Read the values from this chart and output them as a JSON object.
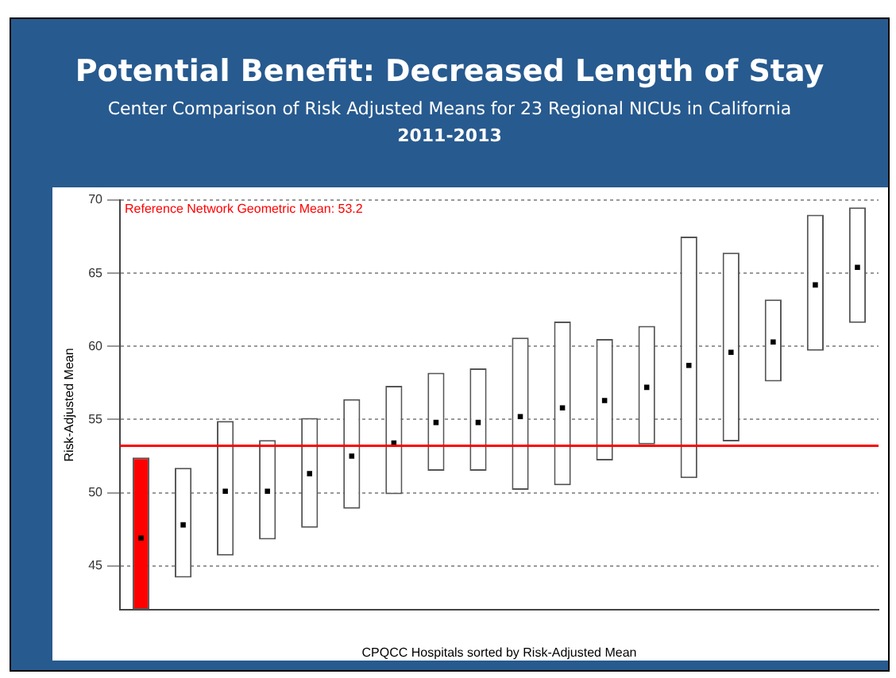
{
  "chart_data": {
    "type": "bar",
    "title": "Potential Benefit: Decreased Length of Stay",
    "subtitle": "Center Comparison of Risk Adjusted Means for 23 Regional NICUs in California\n2011-2013",
    "xlabel": "CPQCC Hospitals sorted by Risk-Adjusted Mean",
    "ylabel": "Risk-Adjusted Mean",
    "categories": [
      null,
      null,
      null,
      null,
      null,
      null,
      null,
      null,
      null,
      null,
      null,
      null,
      null,
      null,
      null,
      null,
      null,
      null
    ],
    "series": [
      {
        "base": [
          42,
          44.2,
          45.7,
          46.8,
          47.6,
          48.9,
          49.9,
          51.5,
          51.5,
          50.2,
          50.5,
          52.2,
          53.3,
          51.0,
          53.5,
          57.6,
          59.7,
          61.6
        ],
        "values": [
          10.4,
          7.5,
          9.2,
          6.8,
          7.5,
          7.5,
          7.4,
          6.7,
          7.0,
          10.4,
          11.2,
          8.3,
          8.1,
          16.5,
          12.9,
          5.6,
          9.3,
          7.9
        ],
        "colors": [
          "#ff0000",
          "#ffffff",
          "#ffffff",
          "#ffffff",
          "#ffffff",
          "#ffffff",
          "#ffffff",
          "#ffffff",
          "#ffffff",
          "#ffffff",
          "#ffffff",
          "#ffffff",
          "#ffffff",
          "#ffffff",
          "#ffffff",
          "#ffffff",
          "#ffffff",
          "#ffffff"
        ]
      },
      {
        "type": "scatter",
        "color": "#000000",
        "values": [
          46.9,
          47.8,
          50.1,
          50.1,
          51.3,
          52.5,
          53.4,
          54.8,
          54.8,
          55.2,
          55.8,
          56.3,
          57.2,
          58.7,
          59.6,
          60.3,
          64.2,
          65.4
        ]
      }
    ],
    "ylim": [
      42,
      70
    ],
    "yticks": [
      45,
      50,
      55,
      60,
      65,
      70
    ],
    "grid": "y",
    "legend": false,
    "marker": "square",
    "ref_lines": [
      {
        "axis": "y",
        "value": 53.2,
        "label": "Reference Network Geometric Mean: 53.2",
        "color": "#ff0000"
      }
    ]
  }
}
